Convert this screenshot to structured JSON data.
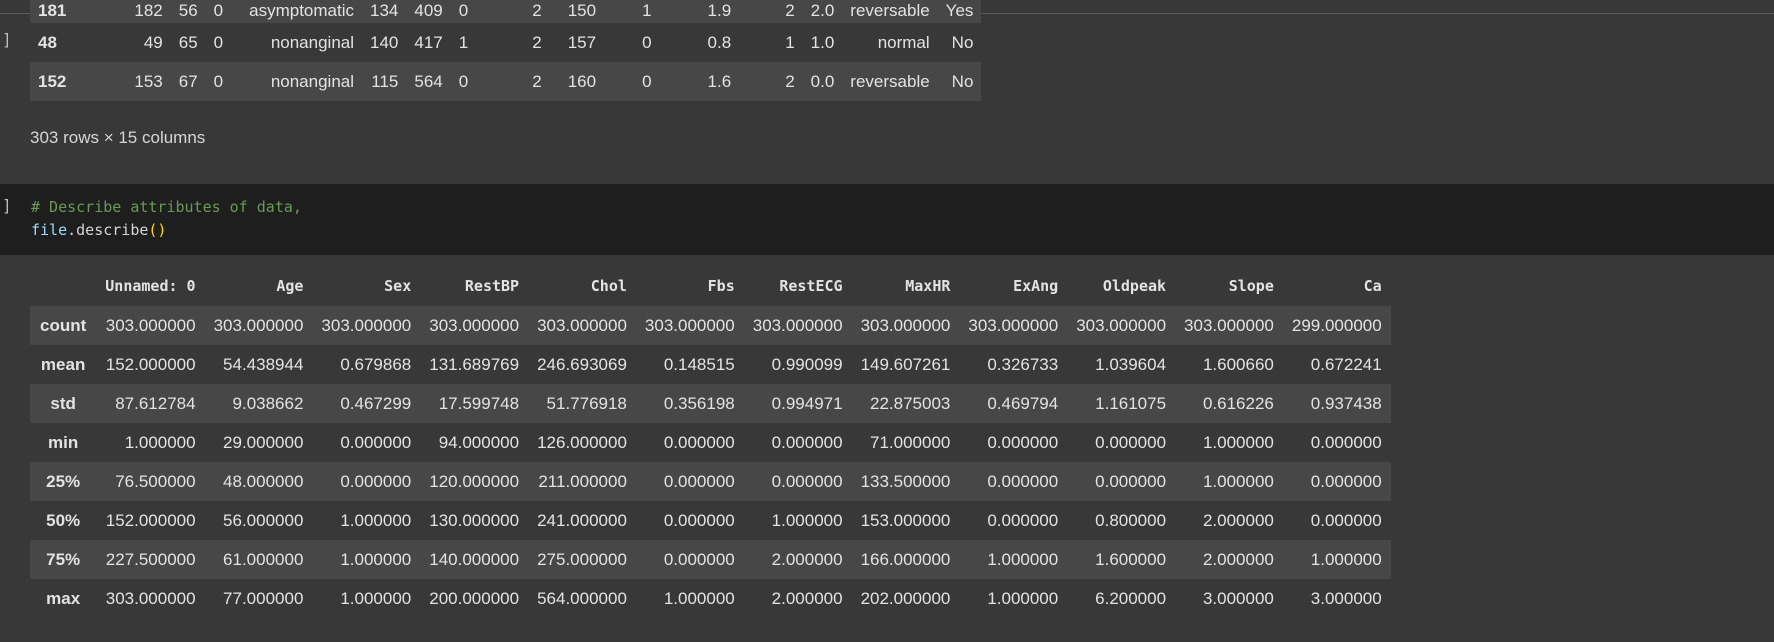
{
  "top_table": {
    "rows": [
      {
        "index": "181",
        "cells": [
          "182",
          "56",
          "0",
          "asymptomatic",
          "134",
          "409",
          "0",
          "2",
          "150",
          "1",
          "1.9",
          "2",
          "2.0",
          "reversable",
          "Yes"
        ]
      },
      {
        "index": "48",
        "cells": [
          "49",
          "65",
          "0",
          "nonanginal",
          "140",
          "417",
          "1",
          "2",
          "157",
          "0",
          "0.8",
          "1",
          "1.0",
          "normal",
          "No"
        ]
      },
      {
        "index": "152",
        "cells": [
          "153",
          "67",
          "0",
          "nonanginal",
          "115",
          "564",
          "0",
          "2",
          "160",
          "0",
          "1.6",
          "2",
          "0.0",
          "reversable",
          "No"
        ]
      }
    ],
    "shape_text": "303 rows × 15 columns"
  },
  "cell_brackets": [
    "]",
    "]"
  ],
  "code_cell": {
    "comment": "# Describe attributes of data,",
    "var": "file",
    "method": ".describe",
    "parens": "()"
  },
  "describe_table": {
    "columns": [
      "Unnamed: 0",
      "Age",
      "Sex",
      "RestBP",
      "Chol",
      "Fbs",
      "RestECG",
      "MaxHR",
      "ExAng",
      "Oldpeak",
      "Slope",
      "Ca"
    ],
    "rows": [
      {
        "index": "count",
        "values": [
          "303.000000",
          "303.000000",
          "303.000000",
          "303.000000",
          "303.000000",
          "303.000000",
          "303.000000",
          "303.000000",
          "303.000000",
          "303.000000",
          "303.000000",
          "299.000000"
        ]
      },
      {
        "index": "mean",
        "values": [
          "152.000000",
          "54.438944",
          "0.679868",
          "131.689769",
          "246.693069",
          "0.148515",
          "0.990099",
          "149.607261",
          "0.326733",
          "1.039604",
          "1.600660",
          "0.672241"
        ]
      },
      {
        "index": "std",
        "values": [
          "87.612784",
          "9.038662",
          "0.467299",
          "17.599748",
          "51.776918",
          "0.356198",
          "0.994971",
          "22.875003",
          "0.469794",
          "1.161075",
          "0.616226",
          "0.937438"
        ]
      },
      {
        "index": "min",
        "values": [
          "1.000000",
          "29.000000",
          "0.000000",
          "94.000000",
          "126.000000",
          "0.000000",
          "0.000000",
          "71.000000",
          "0.000000",
          "0.000000",
          "1.000000",
          "0.000000"
        ]
      },
      {
        "index": "25%",
        "values": [
          "76.500000",
          "48.000000",
          "0.000000",
          "120.000000",
          "211.000000",
          "0.000000",
          "0.000000",
          "133.500000",
          "0.000000",
          "0.000000",
          "1.000000",
          "0.000000"
        ]
      },
      {
        "index": "50%",
        "values": [
          "152.000000",
          "56.000000",
          "1.000000",
          "130.000000",
          "241.000000",
          "0.000000",
          "1.000000",
          "153.000000",
          "0.000000",
          "0.800000",
          "2.000000",
          "0.000000"
        ]
      },
      {
        "index": "75%",
        "values": [
          "227.500000",
          "61.000000",
          "1.000000",
          "140.000000",
          "275.000000",
          "0.000000",
          "2.000000",
          "166.000000",
          "1.000000",
          "1.600000",
          "2.000000",
          "1.000000"
        ]
      },
      {
        "index": "max",
        "values": [
          "303.000000",
          "77.000000",
          "1.000000",
          "200.000000",
          "564.000000",
          "1.000000",
          "2.000000",
          "202.000000",
          "1.000000",
          "6.200000",
          "3.000000",
          "3.000000"
        ]
      }
    ]
  }
}
